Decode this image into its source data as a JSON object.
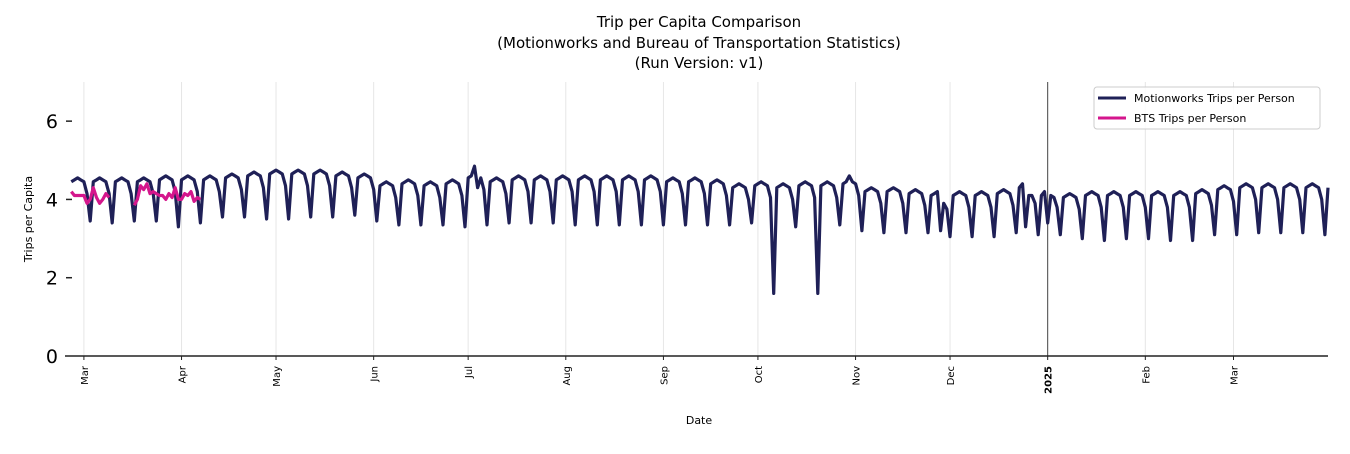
{
  "chart_data": {
    "type": "line",
    "title": [
      "Trip per Capita Comparison",
      "(Motionworks and Bureau of Transportation Statistics)",
      "(Run Version: v1)"
    ],
    "xlabel": "Date",
    "ylabel": "Trips per Capita",
    "ylim": [
      0,
      7
    ],
    "yticks": [
      0,
      2,
      4,
      6
    ],
    "xlim": [
      "2024-02-24",
      "2025-03-31"
    ],
    "xticks": [
      {
        "date": "2024-03-01",
        "label": "Mar"
      },
      {
        "date": "2024-04-01",
        "label": "Apr"
      },
      {
        "date": "2024-05-01",
        "label": "May"
      },
      {
        "date": "2024-06-01",
        "label": "Jun"
      },
      {
        "date": "2024-07-01",
        "label": "Jul"
      },
      {
        "date": "2024-08-01",
        "label": "Aug"
      },
      {
        "date": "2024-09-01",
        "label": "Sep"
      },
      {
        "date": "2024-10-01",
        "label": "Oct"
      },
      {
        "date": "2024-11-01",
        "label": "Nov"
      },
      {
        "date": "2024-12-01",
        "label": "Dec"
      },
      {
        "date": "2025-01-01",
        "label": "2025",
        "bold": true
      },
      {
        "date": "2025-02-01",
        "label": "Feb"
      },
      {
        "date": "2025-03-01",
        "label": "Mar"
      }
    ],
    "year_marker": "2025-01-01",
    "grid": "vertical",
    "legend_position": "top-right",
    "series": [
      {
        "name": "Motionworks Trips per Person",
        "color": "#1f2057",
        "start_date": "2024-02-26",
        "frequency": "daily",
        "values": [
          4.45,
          4.5,
          4.55,
          4.5,
          4.45,
          4.15,
          3.45,
          4.45,
          4.5,
          4.55,
          4.5,
          4.45,
          4.15,
          3.4,
          4.45,
          4.5,
          4.55,
          4.5,
          4.45,
          4.15,
          3.45,
          4.45,
          4.5,
          4.55,
          4.5,
          4.45,
          4.15,
          3.45,
          4.5,
          4.55,
          4.6,
          4.55,
          4.5,
          4.2,
          3.3,
          4.5,
          4.55,
          4.6,
          4.55,
          4.5,
          4.2,
          3.4,
          4.5,
          4.55,
          4.6,
          4.55,
          4.5,
          4.2,
          3.55,
          4.55,
          4.6,
          4.65,
          4.6,
          4.55,
          4.25,
          3.55,
          4.6,
          4.65,
          4.7,
          4.65,
          4.6,
          4.3,
          3.5,
          4.65,
          4.7,
          4.75,
          4.7,
          4.65,
          4.35,
          3.5,
          4.65,
          4.7,
          4.75,
          4.7,
          4.65,
          4.35,
          3.55,
          4.65,
          4.7,
          4.75,
          4.7,
          4.65,
          4.35,
          3.55,
          4.6,
          4.65,
          4.7,
          4.65,
          4.6,
          4.3,
          3.6,
          4.55,
          4.6,
          4.65,
          4.6,
          4.55,
          4.25,
          3.45,
          4.35,
          4.4,
          4.45,
          4.4,
          4.35,
          4.05,
          3.35,
          4.4,
          4.45,
          4.5,
          4.45,
          4.4,
          4.1,
          3.35,
          4.35,
          4.4,
          4.45,
          4.4,
          4.35,
          4.05,
          3.35,
          4.4,
          4.45,
          4.5,
          4.45,
          4.4,
          4.1,
          3.3,
          4.55,
          4.6,
          4.85,
          4.3,
          4.55,
          4.25,
          3.35,
          4.45,
          4.5,
          4.55,
          4.5,
          4.45,
          4.15,
          3.4,
          4.5,
          4.55,
          4.6,
          4.55,
          4.5,
          4.2,
          3.4,
          4.5,
          4.55,
          4.6,
          4.55,
          4.5,
          4.2,
          3.4,
          4.5,
          4.55,
          4.6,
          4.55,
          4.5,
          4.2,
          3.35,
          4.5,
          4.55,
          4.6,
          4.55,
          4.5,
          4.2,
          3.35,
          4.5,
          4.55,
          4.6,
          4.55,
          4.5,
          4.2,
          3.35,
          4.5,
          4.55,
          4.6,
          4.55,
          4.5,
          4.2,
          3.35,
          4.5,
          4.55,
          4.6,
          4.55,
          4.5,
          4.2,
          3.35,
          4.45,
          4.5,
          4.55,
          4.5,
          4.45,
          4.15,
          3.35,
          4.45,
          4.5,
          4.55,
          4.5,
          4.45,
          4.15,
          3.35,
          4.4,
          4.45,
          4.5,
          4.45,
          4.4,
          4.1,
          3.35,
          4.3,
          4.35,
          4.4,
          4.35,
          4.3,
          4.0,
          3.4,
          4.35,
          4.4,
          4.45,
          4.4,
          4.35,
          4.05,
          1.6,
          4.3,
          4.35,
          4.4,
          4.35,
          4.3,
          4.0,
          3.3,
          4.35,
          4.4,
          4.45,
          4.4,
          4.35,
          4.05,
          1.6,
          4.35,
          4.4,
          4.45,
          4.4,
          4.35,
          4.05,
          3.35,
          4.4,
          4.45,
          4.6,
          4.45,
          4.4,
          4.1,
          3.2,
          4.2,
          4.25,
          4.3,
          4.25,
          4.2,
          3.9,
          3.15,
          4.2,
          4.25,
          4.3,
          4.25,
          4.2,
          3.9,
          3.15,
          4.15,
          4.2,
          4.25,
          4.2,
          4.15,
          3.85,
          3.15,
          4.1,
          4.15,
          4.2,
          3.2,
          3.9,
          3.75,
          3.05,
          4.1,
          4.15,
          4.2,
          4.15,
          4.1,
          3.8,
          3.05,
          4.1,
          4.15,
          4.2,
          4.15,
          4.1,
          3.8,
          3.05,
          4.15,
          4.2,
          4.25,
          4.2,
          4.15,
          3.85,
          3.15,
          4.3,
          4.4,
          3.3,
          4.1,
          4.1,
          3.9,
          3.1,
          4.1,
          4.2,
          3.4,
          4.1,
          4.05,
          3.8,
          3.1,
          4.05,
          4.1,
          4.15,
          4.1,
          4.05,
          3.75,
          3.0,
          4.1,
          4.15,
          4.2,
          4.15,
          4.1,
          3.8,
          2.95,
          4.1,
          4.15,
          4.2,
          4.15,
          4.1,
          3.8,
          3.0,
          4.1,
          4.15,
          4.2,
          4.15,
          4.1,
          3.8,
          3.0,
          4.1,
          4.15,
          4.2,
          4.15,
          4.1,
          3.8,
          2.95,
          4.1,
          4.15,
          4.2,
          4.15,
          4.1,
          3.8,
          2.95,
          4.15,
          4.2,
          4.25,
          4.2,
          4.15,
          3.85,
          3.1,
          4.25,
          4.3,
          4.35,
          4.3,
          4.25,
          3.95,
          3.1,
          4.3,
          4.35,
          4.4,
          4.35,
          4.3,
          4.0,
          3.15,
          4.3,
          4.35,
          4.4,
          4.35,
          4.3,
          4.0,
          3.15,
          4.3,
          4.35,
          4.4,
          4.35,
          4.3,
          4.0,
          3.15,
          4.3,
          4.35,
          4.4,
          4.35,
          4.3,
          4.0,
          3.1,
          4.3
        ]
      },
      {
        "name": "BTS Trips per Person",
        "color": "#d4168c",
        "start_date": "2024-02-26",
        "frequency": "daily",
        "values": [
          4.2,
          4.1,
          4.1,
          4.1,
          4.1,
          3.9,
          4.0,
          4.3,
          4.05,
          3.9,
          4.0,
          4.15,
          4.05,
          null,
          null,
          null,
          null,
          null,
          null,
          null,
          3.85,
          4.0,
          4.35,
          4.25,
          4.4,
          4.15,
          4.2,
          4.15,
          4.1,
          4.1,
          4.0,
          4.15,
          4.05,
          4.3,
          4.0,
          4.0,
          4.15,
          4.1,
          4.2,
          3.95,
          4.05,
          4.0
        ]
      }
    ]
  }
}
